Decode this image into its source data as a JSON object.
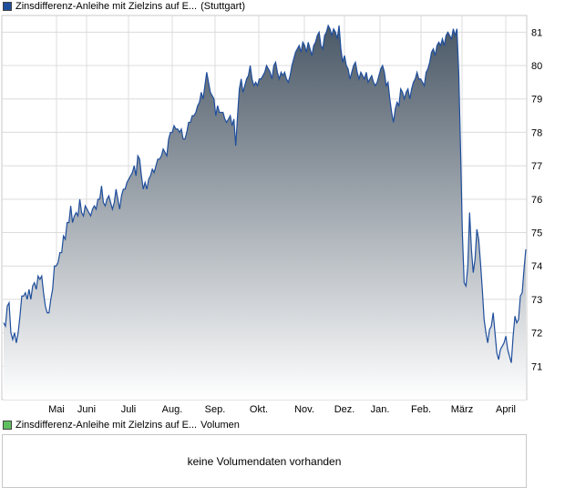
{
  "legend": {
    "price_label": "Zinsdifferenz-Anleihe mit Zielzins auf E...",
    "exchange": "(Stuttgart)",
    "volume_label": "Zinsdifferenz-Anleihe mit Zielzins auf E...",
    "volume_suffix": "Volumen",
    "price_color": "#1f4e9c",
    "volume_color": "#5fbf5f"
  },
  "volume": {
    "message": "keine Volumendaten vorhanden"
  },
  "chart_data": {
    "type": "area",
    "x_tick_labels": [
      "Mai",
      "Juni",
      "Juli",
      "Aug.",
      "Sep.",
      "Okt.",
      "Nov.",
      "Dez.",
      "Jan.",
      "Feb.",
      "März",
      "April"
    ],
    "y_tick_labels": [
      "71",
      "72",
      "73",
      "74",
      "75",
      "76",
      "77",
      "78",
      "79",
      "80",
      "81"
    ],
    "ylim": [
      70,
      81.5
    ],
    "grid": true,
    "line_color": "#1f4e9c",
    "fill_top_color": "#4a5866",
    "fill_bottom_color": "#ffffff",
    "series": [
      {
        "values": [
          72.3,
          72.2,
          72.8,
          72.9,
          72.0,
          71.8,
          72.0,
          71.7,
          72.0,
          72.5,
          73.1,
          73.1,
          73.2,
          73.0,
          73.3,
          73.0,
          73.4,
          73.5,
          73.3,
          73.7,
          73.6,
          73.7,
          73.2,
          72.8,
          72.6,
          72.6,
          73.0,
          73.3,
          74.0,
          74.0,
          74.1,
          74.4,
          74.4,
          74.9,
          74.8,
          75.3,
          75.3,
          75.8,
          75.3,
          75.5,
          75.6,
          75.5,
          76.0,
          75.6,
          75.5,
          75.8,
          75.7,
          75.6,
          75.5,
          75.7,
          75.8,
          75.7,
          76.0,
          76.0,
          76.4,
          75.9,
          75.8,
          76.0,
          76.1,
          75.9,
          75.7,
          75.9,
          76.3,
          76.0,
          75.7,
          76.1,
          76.3,
          76.3,
          76.5,
          76.6,
          76.7,
          76.8,
          77.0,
          76.7,
          77.3,
          77.2,
          76.7,
          76.3,
          76.5,
          76.3,
          76.6,
          76.7,
          76.9,
          76.8,
          77.0,
          77.2,
          77.2,
          77.3,
          77.5,
          77.4,
          77.3,
          77.8,
          78.0,
          78.0,
          78.2,
          78.1,
          78.1,
          78.0,
          78.1,
          77.8,
          77.8,
          78.0,
          78.3,
          78.3,
          78.5,
          78.5,
          78.6,
          78.8,
          78.9,
          79.2,
          79.0,
          79.4,
          79.8,
          79.5,
          79.2,
          79.1,
          79.0,
          78.5,
          78.8,
          78.6,
          78.6,
          78.6,
          78.4,
          78.3,
          78.4,
          78.5,
          78.2,
          78.4,
          77.6,
          78.5,
          79.3,
          79.6,
          79.2,
          79.4,
          79.6,
          79.7,
          80.0,
          79.6,
          79.4,
          79.5,
          79.4,
          79.6,
          79.6,
          79.7,
          79.8,
          80.0,
          79.9,
          79.8,
          79.6,
          80.0,
          80.1,
          79.8,
          79.6,
          79.8,
          79.7,
          79.8,
          79.6,
          79.5,
          79.7,
          80.0,
          80.2,
          80.4,
          80.5,
          80.6,
          80.4,
          80.7,
          80.6,
          80.4,
          80.7,
          80.5,
          80.3,
          80.6,
          80.7,
          80.9,
          81.0,
          80.6,
          80.5,
          80.9,
          81.0,
          81.2,
          81.1,
          80.9,
          81.1,
          81.0,
          80.8,
          81.2,
          80.5,
          80.1,
          80.3,
          80.0,
          79.9,
          79.6,
          79.8,
          80.0,
          80.1,
          79.8,
          79.6,
          79.8,
          79.7,
          79.6,
          79.8,
          79.5,
          79.6,
          79.7,
          79.5,
          79.4,
          79.5,
          79.7,
          79.9,
          80.0,
          79.8,
          79.4,
          79.5,
          79.0,
          78.6,
          78.3,
          78.7,
          78.9,
          78.8,
          79.3,
          79.2,
          79.0,
          79.2,
          79.3,
          79.0,
          79.3,
          79.5,
          79.6,
          79.8,
          79.6,
          79.6,
          79.5,
          79.4,
          79.8,
          79.9,
          80.1,
          80.4,
          80.5,
          80.3,
          80.6,
          80.7,
          80.6,
          80.8,
          80.6,
          80.9,
          81.0,
          80.9,
          80.8,
          81.1,
          80.9,
          81.1,
          79.8,
          77.5,
          75.0,
          73.5,
          73.4,
          74.0,
          75.6,
          74.5,
          73.8,
          74.2,
          75.1,
          74.8,
          74.1,
          73.3,
          72.4,
          72.0,
          71.7,
          72.1,
          72.2,
          72.6,
          72.0,
          71.4,
          71.2,
          71.5,
          71.6,
          71.7,
          71.9,
          71.5,
          71.3,
          71.1,
          71.9,
          72.5,
          72.3,
          72.4,
          73.1,
          73.2,
          73.9,
          74.5
        ]
      }
    ]
  }
}
